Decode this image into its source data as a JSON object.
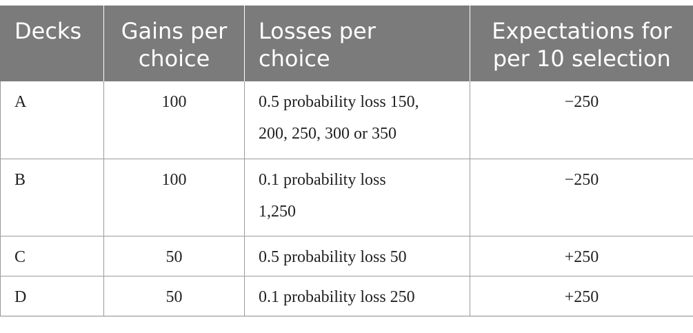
{
  "table": {
    "headers": [
      [
        "Decks"
      ],
      [
        "Gains per",
        "choice"
      ],
      [
        "Losses per",
        "choice"
      ],
      [
        "Expectations for",
        "per 10 selection"
      ]
    ],
    "rows": [
      {
        "deck": "A",
        "gain": "100",
        "loss": [
          "0.5 probability loss 150,",
          "200, 250, 300 or 350"
        ],
        "expectation": "−250"
      },
      {
        "deck": "B",
        "gain": "100",
        "loss": [
          "0.1 probability loss",
          "1,250"
        ],
        "expectation": "−250"
      },
      {
        "deck": "C",
        "gain": "50",
        "loss": [
          "0.5 probability loss 50"
        ],
        "expectation": "+250"
      },
      {
        "deck": "D",
        "gain": "50",
        "loss": [
          "0.1 probability loss 250"
        ],
        "expectation": "+250"
      }
    ]
  },
  "colors": {
    "header_bg": "#7a7b7a",
    "header_text": "#ffffff",
    "body_text": "#222222",
    "rule": "#9a9a9a"
  }
}
